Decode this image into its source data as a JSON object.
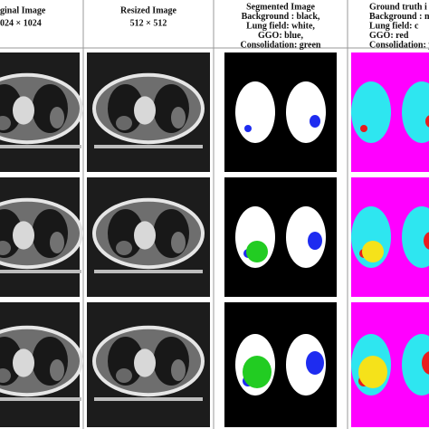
{
  "columns": [
    {
      "lines": [
        "ginal Image",
        "024 × 1024"
      ]
    },
    {
      "lines": [
        "Resized Image",
        "512 × 512"
      ]
    },
    {
      "lines": [
        "Segmented Image",
        "Background : black,",
        "Lung field: white,",
        "GGO: blue,",
        "Consolidation: green"
      ]
    },
    {
      "lines": [
        "Ground truth i",
        "Background : m",
        "Lung field: c",
        "GGO: red",
        "Consolidation: y"
      ]
    }
  ]
}
